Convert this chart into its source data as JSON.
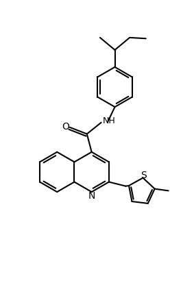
{
  "background_color": "#ffffff",
  "line_color": "#000000",
  "line_width": 1.5,
  "font_size": 9,
  "figsize": [
    2.83,
    4.16
  ],
  "dpi": 100,
  "xlim": [
    0,
    10
  ],
  "ylim": [
    0,
    14.7
  ]
}
